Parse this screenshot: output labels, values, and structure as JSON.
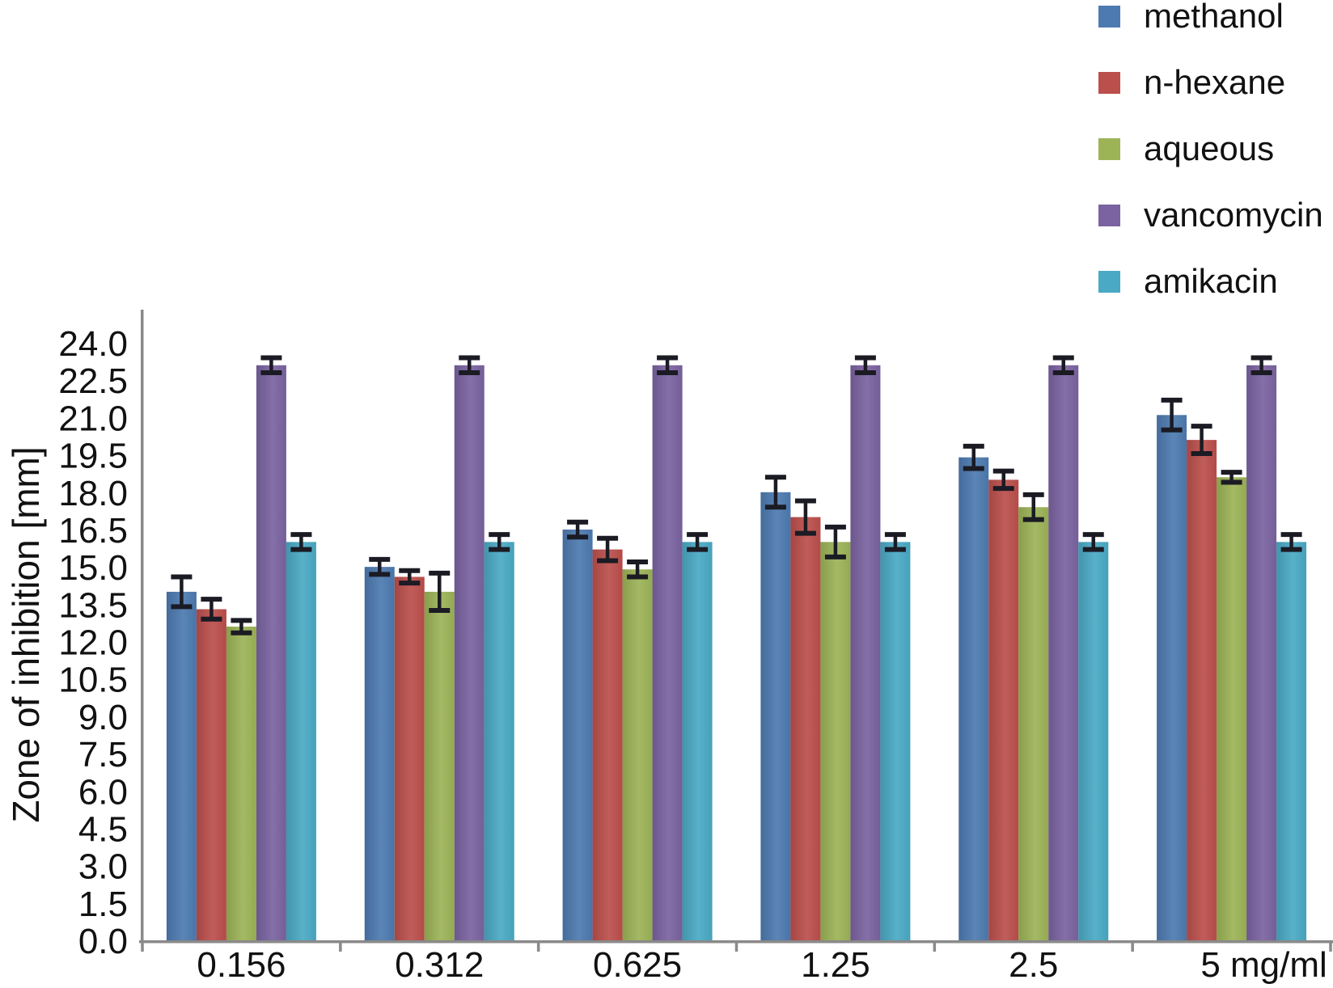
{
  "figure": {
    "background": "#ffffff"
  },
  "chart_data": {
    "type": "bar",
    "title": "",
    "xlabel": "",
    "ylabel": "Zone of inhibition [mm]",
    "categories": [
      "0.156",
      "0.312",
      "0.625",
      "1.25",
      "2.5",
      "5 mg/ml"
    ],
    "ylim": [
      0,
      24
    ],
    "ytick_step": 1.5,
    "y_tick_labels": [
      "0.0",
      "1.5",
      "3.0",
      "4.5",
      "6.0",
      "7.5",
      "9.0",
      "10.5",
      "12.0",
      "13.5",
      "15.0",
      "16.5",
      "18.0",
      "19.5",
      "21.0",
      "22.5",
      "24.0"
    ],
    "grid": false,
    "legend_position": "top-right",
    "error_bars": true,
    "error_bar_color": "#1b1b24",
    "axis_color": "#8a8a8a",
    "text_color": "#111111",
    "series": [
      {
        "name": "methanol",
        "color": "#4d7ab0",
        "values": [
          14.0,
          15.0,
          16.5,
          18.0,
          19.4,
          21.1
        ],
        "errors": [
          0.6,
          0.3,
          0.3,
          0.6,
          0.45,
          0.6
        ]
      },
      {
        "name": "n-hexane",
        "color": "#bb4f4c",
        "values": [
          13.3,
          14.6,
          15.7,
          17.0,
          18.5,
          20.1
        ],
        "errors": [
          0.4,
          0.25,
          0.45,
          0.65,
          0.35,
          0.55
        ]
      },
      {
        "name": "aqueous",
        "color": "#9cb356",
        "values": [
          12.6,
          14.0,
          14.9,
          16.0,
          17.4,
          18.6
        ],
        "errors": [
          0.25,
          0.75,
          0.3,
          0.6,
          0.5,
          0.2
        ]
      },
      {
        "name": "vancomycin",
        "color": "#7a63a0",
        "values": [
          23.1,
          23.1,
          23.1,
          23.1,
          23.1,
          23.1
        ],
        "errors": [
          0.3,
          0.3,
          0.3,
          0.3,
          0.3,
          0.3
        ]
      },
      {
        "name": "amikacin",
        "color": "#4aa9c4",
        "values": [
          16.0,
          16.0,
          16.0,
          16.0,
          16.0,
          16.0
        ],
        "errors": [
          0.3,
          0.3,
          0.3,
          0.3,
          0.3,
          0.3
        ]
      }
    ]
  }
}
